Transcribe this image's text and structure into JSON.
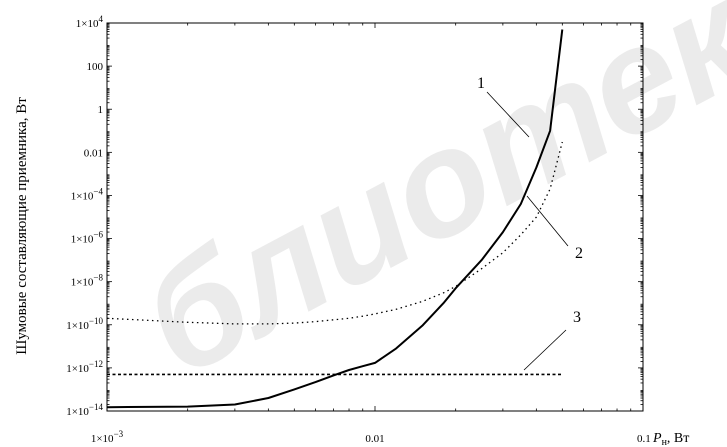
{
  "chart_data": {
    "type": "line",
    "xscale": "log",
    "yscale": "log",
    "xlim": [
      0.001,
      0.1
    ],
    "ylim": [
      1e-14,
      10000
    ],
    "ylabel": "Шумовые составляющие приемника, Вт",
    "xlabel_symbol": "P",
    "xlabel_subscript": "н",
    "xlabel_unit": ", Вт",
    "x_ticks": [
      {
        "value": 0.001,
        "label_base": "1×10",
        "label_exp": "−3"
      },
      {
        "value": 0.01,
        "label_base": "0.01",
        "label_exp": ""
      },
      {
        "value": 0.1,
        "label_base": "0.1",
        "label_exp": ""
      }
    ],
    "y_ticks": [
      {
        "value": 10000,
        "label_base": "1×10",
        "label_exp": "4"
      },
      {
        "value": 100,
        "label_base": "100",
        "label_exp": ""
      },
      {
        "value": 1,
        "label_base": "1",
        "label_exp": ""
      },
      {
        "value": 0.01,
        "label_base": "0.01",
        "label_exp": ""
      },
      {
        "value": 0.0001,
        "label_base": "1×10",
        "label_exp": "−4"
      },
      {
        "value": 1e-06,
        "label_base": "1×10",
        "label_exp": "−6"
      },
      {
        "value": 1e-08,
        "label_base": "1×10",
        "label_exp": "−8"
      },
      {
        "value": 1e-10,
        "label_base": "1×10",
        "label_exp": "−10"
      },
      {
        "value": 1e-12,
        "label_base": "1×10",
        "label_exp": "−12"
      },
      {
        "value": 1e-14,
        "label_base": "1×10",
        "label_exp": "−14"
      }
    ],
    "series": [
      {
        "id": "1",
        "style": "solid",
        "x": [
          0.001,
          0.002,
          0.003,
          0.004,
          0.005,
          0.006,
          0.007,
          0.008,
          0.009,
          0.01,
          0.012,
          0.015,
          0.018,
          0.02,
          0.025,
          0.03,
          0.035,
          0.04,
          0.045,
          0.05
        ],
        "y": [
          1.5e-14,
          1.6e-14,
          2e-14,
          4e-14,
          1e-13,
          2.2e-13,
          4.5e-13,
          8e-13,
          1.2e-12,
          1.7e-12,
          8e-12,
          9e-11,
          1e-09,
          5e-09,
          1e-07,
          2e-06,
          4e-05,
          0.002,
          0.1,
          5000
        ]
      },
      {
        "id": "2",
        "style": "dotted",
        "x": [
          0.001,
          0.002,
          0.003,
          0.004,
          0.005,
          0.006,
          0.007,
          0.008,
          0.009,
          0.01,
          0.012,
          0.015,
          0.018,
          0.02,
          0.025,
          0.03,
          0.035,
          0.04,
          0.045,
          0.05
        ],
        "y": [
          2e-10,
          1.3e-10,
          1.1e-10,
          1.1e-10,
          1.2e-10,
          1.4e-10,
          1.7e-10,
          2e-10,
          2.5e-10,
          3.2e-10,
          5.2e-10,
          1.2e-09,
          3e-09,
          6e-09,
          4e-08,
          2.2e-07,
          1.5e-06,
          1e-05,
          0.0002,
          0.03
        ]
      },
      {
        "id": "3",
        "style": "dashed",
        "x": [
          0.001,
          0.05
        ],
        "y": [
          5e-13,
          5e-13
        ]
      }
    ],
    "annotations": [
      {
        "label": "1",
        "series": "1"
      },
      {
        "label": "2",
        "series": "2"
      },
      {
        "label": "3",
        "series": "3"
      }
    ]
  },
  "watermark": "блиотека"
}
